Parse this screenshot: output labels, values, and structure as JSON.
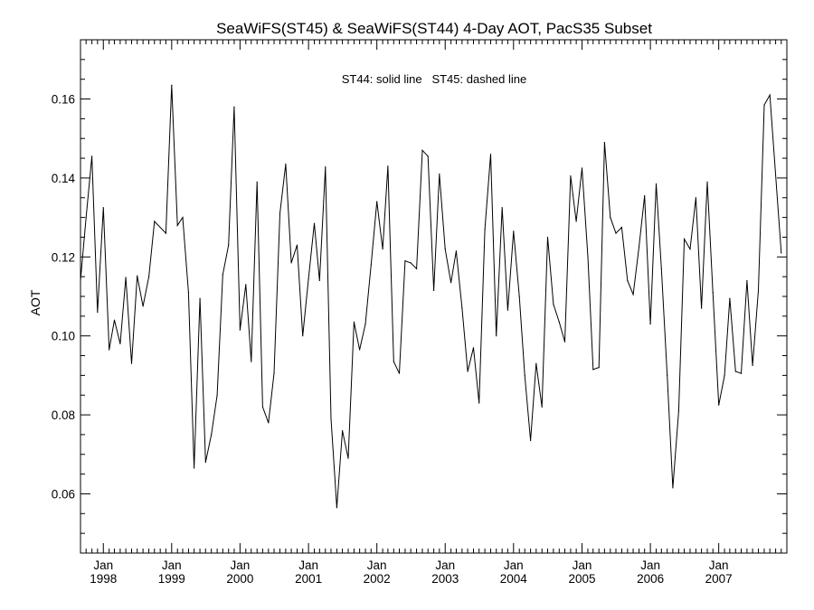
{
  "chart_data": {
    "type": "line",
    "title": "SeaWiFS(ST45) & SeaWiFS(ST44) 4-Day AOT, PacS35 Subset",
    "xlabel": "",
    "ylabel": "AOT",
    "annotation": "ST44: solid line   ST45: dashed line",
    "x_ticks": [
      {
        "month": "Jan",
        "year": "1998"
      },
      {
        "month": "Jan",
        "year": "1999"
      },
      {
        "month": "Jan",
        "year": "2000"
      },
      {
        "month": "Jan",
        "year": "2001"
      },
      {
        "month": "Jan",
        "year": "2002"
      },
      {
        "month": "Jan",
        "year": "2003"
      },
      {
        "month": "Jan",
        "year": "2004"
      },
      {
        "month": "Jan",
        "year": "2005"
      },
      {
        "month": "Jan",
        "year": "2006"
      },
      {
        "month": "Jan",
        "year": "2007"
      }
    ],
    "y_ticks": [
      "0.06",
      "0.08",
      "0.10",
      "0.12",
      "0.14",
      "0.16"
    ],
    "xlim": [
      "1997-09-01",
      "2007-12-31"
    ],
    "ylim": [
      0.045,
      0.175
    ],
    "grid": false,
    "series": [
      {
        "name": "ST44",
        "style": "solid",
        "color": "#000000",
        "points": [
          [
            "1997-09-01",
            0.114
          ],
          [
            "1997-10-01",
            0.13
          ],
          [
            "1997-11-01",
            0.1455
          ],
          [
            "1997-12-01",
            0.106
          ],
          [
            "1998-01-01",
            0.1325
          ],
          [
            "1998-02-01",
            0.0965
          ],
          [
            "1998-03-01",
            0.104
          ],
          [
            "1998-04-01",
            0.098
          ],
          [
            "1998-05-01",
            0.1148
          ],
          [
            "1998-06-01",
            0.093
          ],
          [
            "1998-07-01",
            0.1152
          ],
          [
            "1998-08-01",
            0.1075
          ],
          [
            "1998-09-01",
            0.115
          ],
          [
            "1998-10-01",
            0.129
          ],
          [
            "1998-12-01",
            0.126
          ],
          [
            "1999-01-01",
            0.1635
          ],
          [
            "1999-02-01",
            0.128
          ],
          [
            "1999-03-01",
            0.13
          ],
          [
            "1999-04-01",
            0.111
          ],
          [
            "1999-05-01",
            0.0665
          ],
          [
            "1999-06-01",
            0.1095
          ],
          [
            "1999-07-01",
            0.068
          ],
          [
            "1999-08-01",
            0.075
          ],
          [
            "1999-09-01",
            0.085
          ],
          [
            "1999-10-01",
            0.1155
          ],
          [
            "1999-11-01",
            0.123
          ],
          [
            "1999-12-01",
            0.158
          ],
          [
            "2000-01-01",
            0.1015
          ],
          [
            "2000-02-01",
            0.113
          ],
          [
            "2000-03-01",
            0.0935
          ],
          [
            "2000-04-01",
            0.139
          ],
          [
            "2000-05-01",
            0.082
          ],
          [
            "2000-06-01",
            0.078
          ],
          [
            "2000-07-01",
            0.0905
          ],
          [
            "2000-08-01",
            0.131
          ],
          [
            "2000-09-01",
            0.1435
          ],
          [
            "2000-10-01",
            0.1185
          ],
          [
            "2000-11-01",
            0.123
          ],
          [
            "2000-12-01",
            0.1
          ],
          [
            "2001-01-01",
            0.1145
          ],
          [
            "2001-02-01",
            0.1285
          ],
          [
            "2001-03-01",
            0.114
          ],
          [
            "2001-04-01",
            0.1428
          ],
          [
            "2001-05-01",
            0.079
          ],
          [
            "2001-06-01",
            0.0565
          ],
          [
            "2001-07-01",
            0.076
          ],
          [
            "2001-08-01",
            0.069
          ],
          [
            "2001-09-01",
            0.1035
          ],
          [
            "2001-10-01",
            0.0965
          ],
          [
            "2001-11-01",
            0.103
          ],
          [
            "2001-12-01",
            0.118
          ],
          [
            "2002-01-01",
            0.134
          ],
          [
            "2002-02-01",
            0.122
          ],
          [
            "2002-03-01",
            0.143
          ],
          [
            "2002-04-01",
            0.0935
          ],
          [
            "2002-05-01",
            0.0905
          ],
          [
            "2002-06-01",
            0.119
          ],
          [
            "2002-07-01",
            0.1185
          ],
          [
            "2002-08-01",
            0.117
          ],
          [
            "2002-09-01",
            0.147
          ],
          [
            "2002-10-01",
            0.1455
          ],
          [
            "2002-11-01",
            0.1115
          ],
          [
            "2002-12-01",
            0.141
          ],
          [
            "2003-01-01",
            0.122
          ],
          [
            "2003-02-01",
            0.1135
          ],
          [
            "2003-03-01",
            0.1215
          ],
          [
            "2003-04-01",
            0.107
          ],
          [
            "2003-05-01",
            0.091
          ],
          [
            "2003-06-01",
            0.097
          ],
          [
            "2003-07-01",
            0.083
          ],
          [
            "2003-08-01",
            0.127
          ],
          [
            "2003-09-01",
            0.146
          ],
          [
            "2003-10-01",
            0.1
          ],
          [
            "2003-11-01",
            0.1325
          ],
          [
            "2003-12-01",
            0.1065
          ],
          [
            "2004-01-01",
            0.1265
          ],
          [
            "2004-02-01",
            0.11
          ],
          [
            "2004-03-01",
            0.09
          ],
          [
            "2004-04-01",
            0.0735
          ],
          [
            "2004-05-01",
            0.093
          ],
          [
            "2004-06-01",
            0.082
          ],
          [
            "2004-07-01",
            0.125
          ],
          [
            "2004-08-01",
            0.108
          ],
          [
            "2004-09-01",
            0.1035
          ],
          [
            "2004-10-01",
            0.0985
          ],
          [
            "2004-11-01",
            0.1405
          ],
          [
            "2004-12-01",
            0.129
          ],
          [
            "2005-01-01",
            0.1425
          ],
          [
            "2005-02-01",
            0.12
          ],
          [
            "2005-03-01",
            0.0915
          ],
          [
            "2005-04-01",
            0.092
          ],
          [
            "2005-05-01",
            0.149
          ],
          [
            "2005-06-01",
            0.13
          ],
          [
            "2005-07-01",
            0.126
          ],
          [
            "2005-08-01",
            0.1275
          ],
          [
            "2005-09-01",
            0.114
          ],
          [
            "2005-10-01",
            0.1105
          ],
          [
            "2005-11-01",
            0.1225
          ],
          [
            "2005-12-01",
            0.1355
          ],
          [
            "2006-01-01",
            0.103
          ],
          [
            "2006-02-01",
            0.1385
          ],
          [
            "2006-03-01",
            0.117
          ],
          [
            "2006-04-01",
            0.09
          ],
          [
            "2006-05-01",
            0.0615
          ],
          [
            "2006-06-01",
            0.081
          ],
          [
            "2006-07-01",
            0.1245
          ],
          [
            "2006-08-01",
            0.122
          ],
          [
            "2006-09-01",
            0.135
          ],
          [
            "2006-10-01",
            0.107
          ],
          [
            "2006-11-01",
            0.139
          ],
          [
            "2006-12-01",
            0.111
          ],
          [
            "2007-01-01",
            0.0825
          ],
          [
            "2007-02-01",
            0.09
          ],
          [
            "2007-03-01",
            0.1095
          ],
          [
            "2007-04-01",
            0.091
          ],
          [
            "2007-05-01",
            0.0905
          ],
          [
            "2007-06-01",
            0.114
          ],
          [
            "2007-07-01",
            0.0925
          ],
          [
            "2007-08-01",
            0.1115
          ],
          [
            "2007-09-01",
            0.1585
          ],
          [
            "2007-10-01",
            0.161
          ],
          [
            "2007-12-01",
            0.121
          ]
        ]
      }
    ]
  }
}
